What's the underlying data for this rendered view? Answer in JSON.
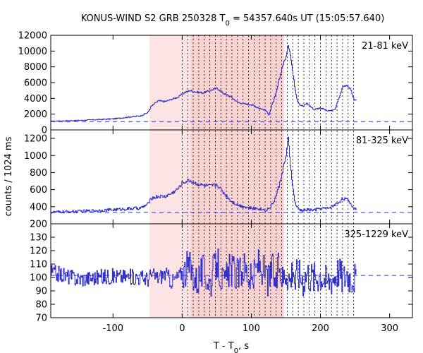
{
  "chart_data": {
    "type": "line",
    "title": "KONUS-WIND S2 GRB 250328 T",
    "title_sub": "0",
    "title_rest": " = 54357.640s UT (15:05:57.640)",
    "xlabel": "T - T",
    "xlabel_sub": "0",
    "xlabel_rest": ", s",
    "ylabel": "counts / 1024 ms",
    "xlim": [
      -190,
      333
    ],
    "x_ticks": [
      -100,
      0,
      100,
      200,
      300
    ],
    "x_tick_labels": [
      "-100",
      "0",
      "100",
      "200",
      "300"
    ],
    "shaded_interval": [
      -47.1,
      147.0
    ],
    "shaded_core": [
      12.0,
      147.0
    ],
    "dotted_lines": [
      0,
      8,
      16,
      24,
      32,
      40,
      48,
      56,
      64,
      72,
      80,
      88,
      96,
      104,
      112,
      120,
      128,
      136,
      144,
      152,
      160,
      168,
      176,
      184,
      192,
      200,
      208,
      216,
      224,
      232,
      240,
      248
    ],
    "colors": {
      "line": "#3333cc",
      "shade": "#fde4e4",
      "shade_core": "#f9d2d2",
      "dotted": "#000000"
    },
    "panels": [
      {
        "band": "21-81 keV",
        "ylim": [
          0,
          12000
        ],
        "y_ticks": [
          0,
          2000,
          4000,
          6000,
          8000,
          10000,
          12000
        ],
        "y_tick_labels": [
          "0",
          "2000",
          "4000",
          "6000",
          "8000",
          "10000",
          "12000"
        ],
        "background": 1050,
        "x": [
          -190,
          -150,
          -100,
          -60,
          -50,
          -45,
          -35,
          -25,
          -15,
          -5,
          0,
          10,
          20,
          30,
          40,
          50,
          60,
          70,
          80,
          90,
          100,
          110,
          120,
          125,
          130,
          135,
          140,
          145,
          150,
          153,
          156,
          160,
          163,
          166,
          170,
          175,
          180,
          190,
          200,
          210,
          220,
          226,
          232,
          238,
          244,
          248
        ],
        "y": [
          1100,
          1200,
          1400,
          1800,
          2200,
          3000,
          3700,
          3600,
          3900,
          4200,
          4600,
          5000,
          4800,
          4700,
          5000,
          5300,
          4600,
          4200,
          3500,
          3300,
          3200,
          2800,
          2500,
          1900,
          3300,
          4500,
          6400,
          8200,
          9300,
          10800,
          9700,
          7000,
          5200,
          3800,
          3200,
          3000,
          3400,
          2600,
          2800,
          2400,
          2500,
          3900,
          5500,
          5700,
          5000,
          3800
        ]
      },
      {
        "band": "81-325 keV",
        "ylim": [
          200,
          1300
        ],
        "y_ticks": [
          200,
          400,
          600,
          800,
          1000,
          1200
        ],
        "y_tick_labels": [
          "200",
          "400",
          "600",
          "800",
          "1000",
          "1200"
        ],
        "background": 333,
        "x": [
          -190,
          -150,
          -100,
          -60,
          -50,
          -45,
          -35,
          -25,
          -15,
          -5,
          0,
          10,
          20,
          30,
          40,
          50,
          60,
          70,
          80,
          90,
          100,
          110,
          120,
          125,
          130,
          135,
          140,
          145,
          150,
          153,
          156,
          160,
          163,
          166,
          170,
          175,
          180,
          190,
          200,
          210,
          220,
          226,
          232,
          238,
          244,
          248
        ],
        "y": [
          335,
          345,
          365,
          385,
          430,
          500,
          520,
          520,
          560,
          620,
          680,
          710,
          670,
          650,
          640,
          660,
          560,
          470,
          420,
          400,
          380,
          380,
          360,
          380,
          430,
          520,
          650,
          830,
          1000,
          1200,
          900,
          600,
          440,
          390,
          360,
          355,
          365,
          360,
          380,
          380,
          420,
          450,
          500,
          480,
          430,
          380
        ]
      },
      {
        "band": "325-1229 keV",
        "ylim": [
          70,
          140
        ],
        "y_ticks": [
          70,
          80,
          90,
          100,
          110,
          120,
          130
        ],
        "y_tick_labels": [
          "70",
          "80",
          "90",
          "100",
          "110",
          "120",
          "130"
        ],
        "background": 101.5,
        "x": [
          -190,
          -150,
          -100,
          -60,
          -50,
          -45,
          -35,
          -25,
          -15,
          -5,
          0,
          10,
          20,
          30,
          40,
          50,
          60,
          70,
          80,
          90,
          100,
          110,
          120,
          125,
          130,
          135,
          140,
          145,
          150,
          153,
          156,
          160,
          163,
          166,
          170,
          175,
          180,
          190,
          200,
          210,
          220,
          226,
          232,
          238,
          244,
          248
        ],
        "y": [
          104,
          99,
          101,
          100,
          99,
          102,
          100,
          103,
          97,
          101,
          104,
          108,
          98,
          105,
          96,
          112,
          94,
          107,
          101,
          109,
          96,
          111,
          103,
          97,
          108,
          94,
          110,
          99,
          106,
          102,
          98,
          111,
          95,
          105,
          102,
          99,
          104,
          100,
          103,
          97,
          102,
          106,
          99,
          104,
          100,
          101
        ]
      }
    ]
  }
}
